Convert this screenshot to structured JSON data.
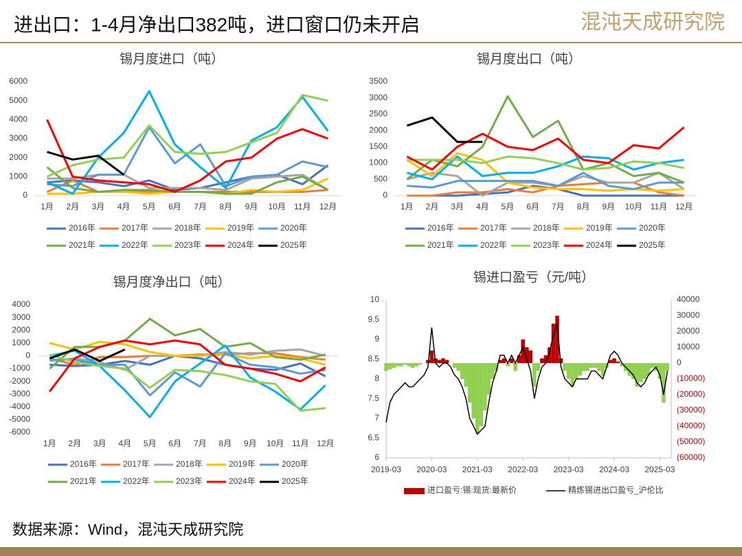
{
  "header": {
    "title": "进出口：1-4月净出口382吨，进口窗口仍未开启",
    "logo": "混沌天成研究院"
  },
  "footer": {
    "source": "数据来源：Wind，混沌天成研究院"
  },
  "chart_data": [
    {
      "type": "line",
      "title": "锡月度进口（吨）",
      "categories": [
        "1月",
        "2月",
        "3月",
        "4月",
        "5月",
        "6月",
        "7月",
        "8月",
        "9月",
        "10月",
        "11月",
        "12月"
      ],
      "ylim": [
        0,
        6000
      ],
      "yticks": [
        0,
        1000,
        2000,
        3000,
        4000,
        5000,
        6000
      ],
      "grid": false,
      "series": [
        {
          "name": "2016年",
          "color": "#4472c4",
          "values": [
            700,
            800,
            700,
            500,
            800,
            300,
            400,
            700,
            1000,
            1100,
            600,
            1600
          ]
        },
        {
          "name": "2017年",
          "color": "#ed7d31",
          "values": [
            200,
            800,
            200,
            200,
            200,
            200,
            200,
            200,
            200,
            200,
            200,
            300
          ]
        },
        {
          "name": "2018年",
          "color": "#a5a5a5",
          "values": [
            900,
            900,
            1100,
            1100,
            400,
            400,
            400,
            300,
            900,
            1000,
            1100,
            300
          ]
        },
        {
          "name": "2019年",
          "color": "#ffc000",
          "values": [
            100,
            100,
            200,
            200,
            100,
            200,
            200,
            100,
            300,
            200,
            300,
            900
          ]
        },
        {
          "name": "2020年",
          "color": "#5b9bd5",
          "values": [
            600,
            500,
            1100,
            1100,
            3600,
            1700,
            2700,
            500,
            1000,
            1100,
            1800,
            1500
          ]
        },
        {
          "name": "2021年",
          "color": "#70ad47",
          "values": [
            1500,
            400,
            200,
            300,
            300,
            200,
            200,
            100,
            100,
            700,
            1000,
            300
          ]
        },
        {
          "name": "2022年",
          "color": "#00b0f0",
          "values": [
            700,
            100,
            2000,
            3300,
            5500,
            2700,
            1500,
            400,
            2900,
            3600,
            5200,
            3400
          ]
        },
        {
          "name": "2023年",
          "color": "#92d050",
          "values": [
            1000,
            1600,
            1900,
            2000,
            3700,
            2300,
            2200,
            2300,
            2800,
            3300,
            5300,
            5000
          ]
        },
        {
          "name": "2024年",
          "color": "#ff0000",
          "values": [
            4000,
            1000,
            800,
            700,
            600,
            200,
            800,
            1800,
            2000,
            3000,
            3500,
            3000
          ]
        },
        {
          "name": "2025年",
          "color": "#000000",
          "values": [
            2300,
            1900,
            2100,
            1100,
            null,
            null,
            null,
            null,
            null,
            null,
            null,
            null
          ]
        }
      ]
    },
    {
      "type": "line",
      "title": "锡月度出口（吨）",
      "categories": [
        "1月",
        "2月",
        "3月",
        "4月",
        "5月",
        "6月",
        "7月",
        "8月",
        "9月",
        "10月",
        "11月",
        "12月"
      ],
      "ylim": [
        0,
        3500
      ],
      "yticks": [
        0,
        500,
        1000,
        1500,
        2000,
        2500,
        3000,
        3500
      ],
      "grid": false,
      "series": [
        {
          "name": "2016年",
          "color": "#4472c4",
          "values": [
            0,
            0,
            0,
            50,
            100,
            300,
            200,
            0,
            0,
            0,
            0,
            0
          ]
        },
        {
          "name": "2017年",
          "color": "#ed7d31",
          "values": [
            0,
            0,
            100,
            100,
            200,
            100,
            300,
            350,
            400,
            400,
            100,
            0
          ]
        },
        {
          "name": "2018年",
          "color": "#a5a5a5",
          "values": [
            500,
            700,
            600,
            0,
            400,
            400,
            300,
            600,
            400,
            400,
            700,
            200
          ]
        },
        {
          "name": "2019年",
          "color": "#ffc000",
          "values": [
            1100,
            600,
            1300,
            1100,
            400,
            250,
            200,
            200,
            150,
            200,
            150,
            200
          ]
        },
        {
          "name": "2020年",
          "color": "#5b9bd5",
          "values": [
            300,
            250,
            450,
            450,
            450,
            450,
            300,
            700,
            300,
            200,
            400,
            400
          ]
        },
        {
          "name": "2021年",
          "color": "#70ad47",
          "values": [
            500,
            1100,
            900,
            1500,
            3050,
            1800,
            2300,
            800,
            1000,
            600,
            700,
            400
          ]
        },
        {
          "name": "2022年",
          "color": "#00b0f0",
          "values": [
            700,
            500,
            1200,
            600,
            700,
            700,
            900,
            1200,
            1150,
            800,
            1000,
            1100
          ]
        },
        {
          "name": "2023年",
          "color": "#92d050",
          "values": [
            1100,
            1100,
            1100,
            1000,
            1200,
            1150,
            1000,
            800,
            850,
            1050,
            1000,
            850
          ]
        },
        {
          "name": "2024年",
          "color": "#ff0000",
          "values": [
            1200,
            800,
            1500,
            1900,
            1500,
            1400,
            1750,
            1100,
            1000,
            1550,
            1450,
            2100
          ]
        },
        {
          "name": "2025年",
          "color": "#000000",
          "values": [
            2150,
            2400,
            1650,
            1650,
            null,
            null,
            null,
            null,
            null,
            null,
            null,
            null
          ]
        }
      ]
    },
    {
      "type": "line",
      "title": "锡月度净出口（吨）",
      "categories": [
        "1月",
        "2月",
        "3月",
        "4月",
        "5月",
        "6月",
        "7月",
        "8月",
        "9月",
        "10月",
        "11月",
        "12月"
      ],
      "ylim": [
        -6000,
        4000
      ],
      "yticks": [
        -6000,
        -5000,
        -4000,
        -3000,
        -2000,
        -1000,
        0,
        1000,
        2000,
        3000,
        4000
      ],
      "grid": false,
      "series": [
        {
          "name": "2016年",
          "color": "#4472c4",
          "values": [
            -700,
            -800,
            -700,
            -400,
            -700,
            0,
            -200,
            -700,
            -1000,
            -1100,
            -600,
            -1600
          ]
        },
        {
          "name": "2017年",
          "color": "#ed7d31",
          "values": [
            -200,
            -700,
            -100,
            -100,
            0,
            0,
            100,
            100,
            200,
            200,
            -100,
            -300
          ]
        },
        {
          "name": "2018年",
          "color": "#a5a5a5",
          "values": [
            -400,
            -200,
            -500,
            -1100,
            0,
            0,
            0,
            300,
            100,
            400,
            500,
            0
          ]
        },
        {
          "name": "2019年",
          "color": "#ffc000",
          "values": [
            1000,
            500,
            1100,
            900,
            300,
            0,
            0,
            100,
            -200,
            0,
            -200,
            -700
          ]
        },
        {
          "name": "2020年",
          "color": "#5b9bd5",
          "values": [
            -300,
            -300,
            -700,
            -700,
            -3100,
            -1300,
            -2400,
            200,
            -700,
            -900,
            -1400,
            -1100
          ]
        },
        {
          "name": "2021年",
          "color": "#70ad47",
          "values": [
            -1000,
            700,
            700,
            1200,
            2900,
            1600,
            2100,
            700,
            1000,
            -100,
            -300,
            100
          ]
        },
        {
          "name": "2022年",
          "color": "#00b0f0",
          "values": [
            0,
            400,
            -800,
            -2700,
            -4800,
            -2000,
            -600,
            800,
            -1700,
            -2800,
            -4200,
            -2300
          ]
        },
        {
          "name": "2023年",
          "color": "#92d050",
          "values": [
            100,
            -500,
            -800,
            -1000,
            -2500,
            -1100,
            -1200,
            -1500,
            -2000,
            -2200,
            -4300,
            -4100
          ]
        },
        {
          "name": "2024年",
          "color": "#ff0000",
          "values": [
            -2800,
            -200,
            700,
            1200,
            900,
            1200,
            900,
            -700,
            -1000,
            -1400,
            -2000,
            -900
          ]
        },
        {
          "name": "2025年",
          "color": "#000000",
          "values": [
            -200,
            500,
            -400,
            500,
            null,
            null,
            null,
            null,
            null,
            null,
            null,
            null
          ]
        }
      ]
    },
    {
      "type": "combo",
      "title": "锡进口盈亏（元/吨）",
      "x": [
        "2019-03",
        "2019-04",
        "2019-05",
        "2019-06",
        "2019-07",
        "2019-08",
        "2019-09",
        "2019-10",
        "2019-11",
        "2019-12",
        "2020-01",
        "2020-02",
        "2020-03",
        "2020-04",
        "2020-05",
        "2020-06",
        "2020-07",
        "2020-08",
        "2020-09",
        "2020-10",
        "2020-11",
        "2020-12",
        "2021-01",
        "2021-02",
        "2021-03",
        "2021-04",
        "2021-05",
        "2021-06",
        "2021-07",
        "2021-08",
        "2021-09",
        "2021-10",
        "2021-11",
        "2021-12",
        "2022-01",
        "2022-02",
        "2022-03",
        "2022-04",
        "2022-05",
        "2022-06",
        "2022-07",
        "2022-08",
        "2022-09",
        "2022-10",
        "2022-11",
        "2022-12",
        "2023-01",
        "2023-02",
        "2023-03",
        "2023-04",
        "2023-05",
        "2023-06",
        "2023-07",
        "2023-08",
        "2023-09",
        "2023-10",
        "2023-11",
        "2023-12",
        "2024-01",
        "2024-02",
        "2024-03",
        "2024-04",
        "2024-05",
        "2024-06",
        "2024-07",
        "2024-08",
        "2024-09",
        "2024-10",
        "2024-11",
        "2024-12",
        "2025-01",
        "2025-02",
        "2025-03",
        "2025-04",
        "2025-05"
      ],
      "xlim": [
        "2019-03",
        "2025-06"
      ],
      "xticks": [
        "2019-03",
        "2020-03",
        "2021-03",
        "2022-03",
        "2023-03",
        "2024-03",
        "2025-03"
      ],
      "ylim": [
        6,
        10
      ],
      "yticks": [
        6,
        6.5,
        7,
        7.5,
        8,
        8.5,
        9,
        9.5,
        10
      ],
      "y2lim": [
        -60000,
        40000
      ],
      "y2ticks": [
        {
          "value": -60000,
          "label": "(60000)"
        },
        {
          "value": -50000,
          "label": "(50000)"
        },
        {
          "value": -40000,
          "label": "(40000)"
        },
        {
          "value": -30000,
          "label": "(30000)"
        },
        {
          "value": -20000,
          "label": "(20000)"
        },
        {
          "value": -10000,
          "label": "(10000)"
        },
        0,
        10000,
        20000,
        30000,
        40000
      ],
      "y2_negative_label_color": "#c00000",
      "grid": false,
      "series": [
        {
          "name": "进口盈亏:锡:现货:最新价",
          "type": "bar",
          "axis": "y2",
          "color": "#c00000",
          "negative_color": "#92d050",
          "values": [
            -5000,
            -4000,
            -3000,
            -2000,
            -2000,
            -1000,
            -2000,
            -3000,
            -2000,
            -1000,
            0,
            2000,
            8000,
            3000,
            2000,
            3000,
            2000,
            0,
            -3000,
            -5000,
            -10000,
            -15000,
            -25000,
            -35000,
            -45000,
            -40000,
            -30000,
            -20000,
            -10000,
            -5000,
            2000,
            3000,
            -2000,
            3000,
            -5000,
            5000,
            15000,
            10000,
            8000,
            -15000,
            -5000,
            3000,
            5000,
            10000,
            25000,
            30000,
            3000,
            -5000,
            -10000,
            -15000,
            -10000,
            -8000,
            -5000,
            -5000,
            -3000,
            -3000,
            -5000,
            -8000,
            -3000,
            2000,
            3000,
            1000,
            -2000,
            -5000,
            -8000,
            -10000,
            -15000,
            -12000,
            -10000,
            -8000,
            -3000,
            -5000,
            -10000,
            -25000,
            -5000
          ]
        },
        {
          "name": "精炼锡进出口盈亏_沪伦比",
          "type": "line",
          "axis": "y",
          "color": "#000000",
          "values": [
            6.9,
            7.4,
            7.6,
            7.7,
            7.8,
            7.9,
            7.8,
            7.8,
            7.9,
            8.0,
            8.1,
            8.3,
            9.3,
            8.4,
            8.3,
            8.4,
            8.4,
            8.3,
            8.1,
            8.0,
            7.8,
            7.5,
            7.0,
            6.8,
            6.6,
            6.7,
            6.8,
            7.4,
            7.9,
            8.2,
            8.6,
            8.6,
            8.4,
            8.6,
            8.4,
            8.6,
            8.8,
            8.5,
            8.2,
            7.5,
            8.0,
            8.3,
            8.4,
            8.7,
            9.1,
            9.4,
            8.3,
            8.0,
            7.9,
            7.8,
            8.0,
            8.0,
            8.0,
            8.0,
            8.2,
            8.2,
            8.1,
            8.0,
            8.3,
            8.6,
            8.7,
            8.6,
            8.4,
            8.3,
            8.2,
            8.1,
            7.9,
            7.8,
            7.9,
            8.1,
            8.2,
            8.3,
            8.1,
            7.6,
            8.2
          ]
        }
      ]
    }
  ]
}
